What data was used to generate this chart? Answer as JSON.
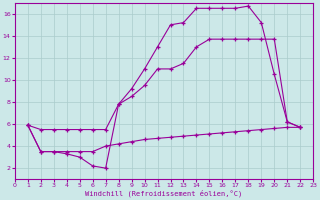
{
  "xlabel": "Windchill (Refroidissement éolien,°C)",
  "bg_color": "#cce8e8",
  "line_color": "#990099",
  "grid_color": "#aacccc",
  "xlim": [
    0,
    23
  ],
  "ylim": [
    1,
    17
  ],
  "xticks": [
    0,
    1,
    2,
    3,
    4,
    5,
    6,
    7,
    8,
    9,
    10,
    11,
    12,
    13,
    14,
    15,
    16,
    17,
    18,
    19,
    20,
    21,
    22,
    23
  ],
  "yticks": [
    2,
    4,
    6,
    8,
    10,
    12,
    14,
    16
  ],
  "line1_x": [
    1,
    2,
    3,
    4,
    5,
    6,
    7,
    8,
    9,
    10,
    11,
    12,
    13,
    14,
    15,
    16,
    17,
    18,
    19,
    20,
    21,
    22
  ],
  "line1_y": [
    5.9,
    3.5,
    3.5,
    3.5,
    3.5,
    3.5,
    4.0,
    4.2,
    4.4,
    4.6,
    4.7,
    4.8,
    4.9,
    5.0,
    5.1,
    5.2,
    5.3,
    5.4,
    5.5,
    5.6,
    5.7,
    5.7
  ],
  "line2_x": [
    1,
    2,
    3,
    4,
    5,
    6,
    7,
    8,
    9,
    10,
    11,
    12,
    13,
    14,
    15,
    16,
    17,
    18,
    19,
    20,
    21,
    22
  ],
  "line2_y": [
    5.9,
    3.5,
    3.5,
    3.3,
    3.0,
    2.2,
    2.0,
    7.8,
    8.5,
    9.5,
    11.0,
    11.0,
    11.5,
    13.0,
    13.7,
    13.7,
    13.7,
    13.7,
    13.7,
    13.7,
    6.2,
    5.7
  ],
  "line3_x": [
    1,
    2,
    3,
    4,
    5,
    6,
    7,
    8,
    9,
    10,
    11,
    12,
    13,
    14,
    15,
    16,
    17,
    18,
    19,
    20,
    21,
    22
  ],
  "line3_y": [
    5.9,
    5.5,
    5.5,
    5.5,
    5.5,
    5.5,
    5.5,
    7.8,
    9.2,
    11.0,
    13.0,
    15.0,
    15.2,
    16.5,
    16.5,
    16.5,
    16.5,
    16.7,
    15.2,
    10.5,
    6.2,
    5.7
  ]
}
